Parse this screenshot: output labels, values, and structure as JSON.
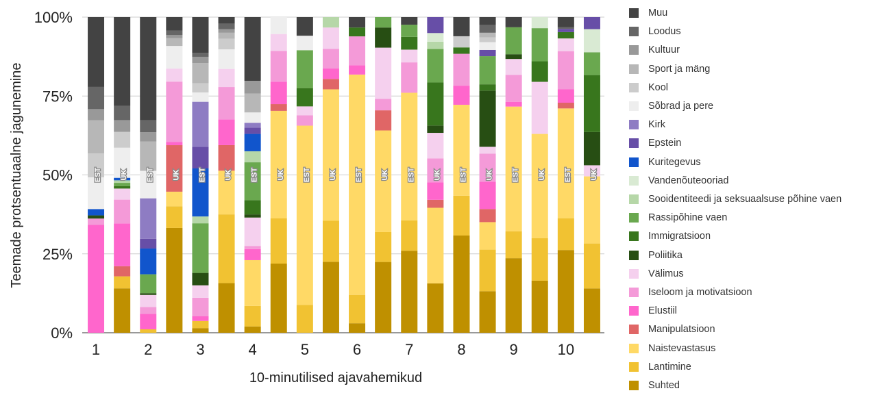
{
  "chart_data": {
    "type": "bar",
    "stacked": "percent",
    "ylabel": "Teemade protsentuaalne jagunemine",
    "xlabel": "10-minutilised ajavahemikud",
    "ylim": [
      0,
      100
    ],
    "yticks": [
      "0%",
      "25%",
      "50%",
      "75%",
      "100%"
    ],
    "grid": true,
    "legend_position": "right",
    "xtick_labels": [
      "1",
      "2",
      "3",
      "4",
      "5",
      "6",
      "7",
      "8",
      "9",
      "10"
    ],
    "categories": [
      "1 EST",
      "1 UK",
      "2 EST",
      "2 UK",
      "3 EST",
      "3 UK",
      "4 EST",
      "4 UK",
      "5 EST",
      "5 UK",
      "6 EST",
      "6 UK",
      "7 EST",
      "7 UK",
      "8 EST",
      "8 UK",
      "9 EST",
      "9 UK",
      "10 EST",
      "10 UK"
    ],
    "bar_labels": [
      "EST",
      "UK",
      "EST",
      "UK",
      "EST",
      "UK",
      "EST",
      "UK",
      "EST",
      "UK",
      "EST",
      "UK",
      "EST",
      "UK",
      "EST",
      "UK",
      "EST",
      "UK",
      "EST",
      "UK"
    ],
    "series": [
      {
        "name": "Suhted",
        "color": "#bf9000",
        "values": [
          0,
          14,
          0,
          33.8,
          1.5,
          16.5,
          2,
          22.5,
          0,
          22.5,
          3,
          21.8,
          27,
          15.5,
          30.5,
          13.3,
          23.5,
          16.5,
          26,
          14
        ]
      },
      {
        "name": "Lantimine",
        "color": "#f1c232",
        "values": [
          0,
          3.8,
          1,
          7,
          2.3,
          22.8,
          6.5,
          14.7,
          8.7,
          13,
          9,
          9.2,
          10,
          0,
          12.5,
          13.3,
          8.5,
          13.5,
          10,
          14.2
        ]
      },
      {
        "name": "Naistevastasus",
        "color": "#ffd966",
        "values": [
          0,
          0,
          0,
          4.7,
          0,
          14.5,
          14.5,
          35,
          55.8,
          41.7,
          69.8,
          31.3,
          42,
          23.7,
          28.5,
          8.8,
          39.3,
          33,
          34.5,
          21.2
        ]
      },
      {
        "name": "Manipulatsioon",
        "color": "#e06666",
        "values": [
          0,
          3.2,
          0,
          15,
          0,
          8.5,
          0,
          2.2,
          0,
          3.3,
          0,
          6.2,
          0,
          2.5,
          0,
          4.2,
          0,
          0,
          1.8,
          0
        ]
      },
      {
        "name": "Elustiil",
        "color": "#ff66cc",
        "values": [
          34,
          13.5,
          4.5,
          1,
          1.5,
          8.5,
          3.5,
          7.3,
          0,
          3.3,
          2.9,
          0,
          0,
          5.5,
          6,
          8.7,
          1.5,
          0,
          4.2,
          0
        ]
      },
      {
        "name": "Iseloom ja motivatsioon",
        "color": "#f49ad8",
        "values": [
          2,
          7.5,
          2,
          19.5,
          6,
          10.8,
          1,
          10,
          3.2,
          6.2,
          9.2,
          3.5,
          10,
          7.5,
          10,
          9,
          8.5,
          0,
          12,
          0
        ]
      },
      {
        "name": "Välimus",
        "color": "#f5d0ee",
        "values": [
          0,
          3.5,
          3.5,
          4.2,
          4,
          6,
          9,
          5.5,
          2.8,
          6.8,
          0,
          15.8,
          4.2,
          8,
          0,
          2.2,
          5,
          16.5,
          4,
          3.5
        ]
      },
      {
        "name": "Poliitika",
        "color": "#274e13",
        "values": [
          1,
          0,
          0.5,
          0,
          4,
          0,
          1,
          0,
          0,
          0,
          0,
          6.2,
          0,
          2.3,
          0,
          18,
          1.5,
          0,
          0,
          10.5
        ]
      },
      {
        "name": "Immigratsioon",
        "color": "#38761d",
        "values": [
          0,
          0.8,
          0,
          0,
          0,
          0,
          4.5,
          0,
          5.7,
          0,
          2.8,
          0,
          4.2,
          13.5,
          2,
          2,
          0,
          6.5,
          2,
          18
        ]
      },
      {
        "name": "Rassipõhine vaen",
        "color": "#6aa84f",
        "values": [
          0,
          1,
          5.5,
          0,
          16,
          0,
          12,
          0,
          11.8,
          0,
          0,
          3.2,
          4,
          10.5,
          0,
          9,
          8.5,
          10.5,
          0,
          7.2
        ]
      },
      {
        "name": "Sooidentiteedi ja seksuaalsuse põhine vaen",
        "color": "#b6d7a8",
        "values": [
          0,
          0.8,
          0,
          0,
          2.2,
          0,
          3.5,
          0,
          0,
          3.3,
          0,
          0,
          0,
          2.3,
          0,
          0,
          0,
          0,
          0,
          0
        ]
      },
      {
        "name": "Vandenõuteooriad",
        "color": "#d9ead3",
        "values": [
          0,
          0,
          0,
          0,
          0,
          0,
          0,
          0,
          0,
          0,
          0,
          0,
          0,
          2.7,
          0,
          0,
          0,
          3.5,
          0,
          7.3
        ]
      },
      {
        "name": "Kuritegevus",
        "color": "#1155cc",
        "values": [
          2,
          0.8,
          7.5,
          0,
          15.5,
          0,
          5.5,
          0,
          0,
          0,
          0,
          0,
          0,
          0,
          0,
          0,
          0,
          0,
          0,
          0
        ]
      },
      {
        "name": "Epstein",
        "color": "#674ea7",
        "values": [
          0,
          0,
          2.8,
          0,
          7,
          0,
          2,
          0,
          0,
          0,
          0,
          0,
          0,
          5,
          0,
          2,
          0,
          0,
          1,
          3.8
        ]
      },
      {
        "name": "Kirk",
        "color": "#8e7cc3",
        "values": [
          0,
          0,
          11.8,
          0,
          14.5,
          0,
          1.5,
          0,
          0,
          0,
          0,
          0,
          0,
          0,
          0,
          0,
          0,
          0,
          0,
          0
        ]
      },
      {
        "name": "Sõbrad ja pere",
        "color": "#eeeeee",
        "values": [
          10,
          9.5,
          8,
          7.3,
          3,
          6.5,
          3.3,
          5.5,
          4.5,
          0,
          0,
          0,
          0,
          0,
          0,
          2.5,
          0,
          0,
          0,
          0
        ]
      },
      {
        "name": "Kool",
        "color": "#cccccc",
        "values": [
          7.5,
          5,
          0,
          0,
          3,
          3.5,
          0,
          0,
          0,
          0,
          0,
          0,
          0,
          0,
          3.5,
          1.5,
          0,
          0,
          0,
          0
        ]
      },
      {
        "name": "Sport ja mäng",
        "color": "#b7b7b7",
        "values": [
          10.5,
          0,
          8.5,
          2.5,
          6.5,
          2,
          6,
          0,
          0,
          0,
          0,
          0,
          0,
          0,
          0,
          1.5,
          0,
          0,
          0,
          0
        ]
      },
      {
        "name": "Kultuur",
        "color": "#999999",
        "values": [
          3.5,
          3.7,
          2.7,
          1,
          2,
          1.2,
          4,
          0,
          0,
          0,
          0,
          0,
          0,
          0,
          0,
          0,
          0,
          0,
          0,
          0
        ]
      },
      {
        "name": "Loodus",
        "color": "#666666",
        "values": [
          7,
          4.5,
          3.5,
          1.5,
          1.3,
          1.8,
          0,
          0,
          0,
          0,
          0,
          0,
          0,
          0,
          0,
          2.5,
          0,
          0,
          0.5,
          0
        ]
      },
      {
        "name": "Muu",
        "color": "#434343",
        "values": [
          22,
          28,
          30,
          4.3,
          11.5,
          2.2,
          20.2,
          0,
          5.8,
          0,
          3.3,
          0,
          2.5,
          0,
          6,
          2.5,
          3.2,
          0,
          3.2,
          0
        ]
      }
    ]
  }
}
